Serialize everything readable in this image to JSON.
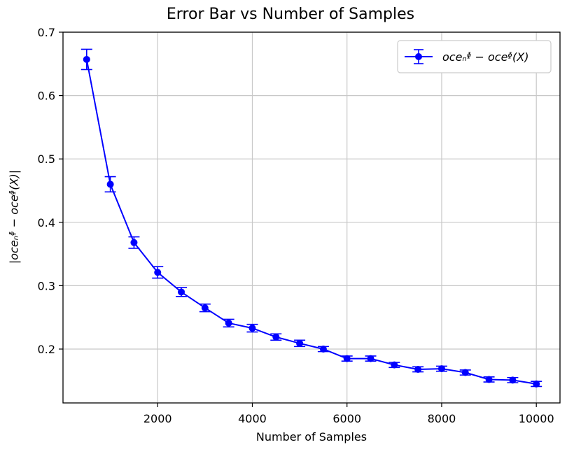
{
  "chart_data": {
    "type": "line",
    "title": "Error Bar vs Number of Samples",
    "xlabel": "Number of Samples",
    "ylabel": "|oceₙᶲ − oceᶲ(X)|",
    "xlim": [
      0,
      10500
    ],
    "ylim": [
      0.115,
      0.7
    ],
    "xticks": [
      2000,
      4000,
      6000,
      8000,
      10000
    ],
    "xtick_labels": [
      "2000",
      "4000",
      "6000",
      "8000",
      "10000"
    ],
    "yticks": [
      0.2,
      0.3,
      0.4,
      0.5,
      0.6,
      0.7
    ],
    "ytick_labels": [
      "0.2",
      "0.3",
      "0.4",
      "0.5",
      "0.6",
      "0.7"
    ],
    "grid": true,
    "legend_position": "top-right",
    "series": [
      {
        "name": "oceₙᶲ − oceᶲ(X)",
        "color": "#0000ff",
        "marker": "circle",
        "x": [
          500,
          1000,
          1500,
          2000,
          2500,
          3000,
          3500,
          4000,
          4500,
          5000,
          5500,
          6000,
          6500,
          7000,
          7500,
          8000,
          8500,
          9000,
          9500,
          10000
        ],
        "y": [
          0.657,
          0.46,
          0.368,
          0.321,
          0.29,
          0.265,
          0.241,
          0.233,
          0.219,
          0.209,
          0.2,
          0.185,
          0.185,
          0.175,
          0.168,
          0.169,
          0.163,
          0.152,
          0.151,
          0.145
        ],
        "err": [
          0.016,
          0.012,
          0.009,
          0.009,
          0.007,
          0.006,
          0.006,
          0.006,
          0.005,
          0.005,
          0.004,
          0.004,
          0.004,
          0.004,
          0.004,
          0.004,
          0.004,
          0.004,
          0.004,
          0.004
        ]
      }
    ]
  }
}
